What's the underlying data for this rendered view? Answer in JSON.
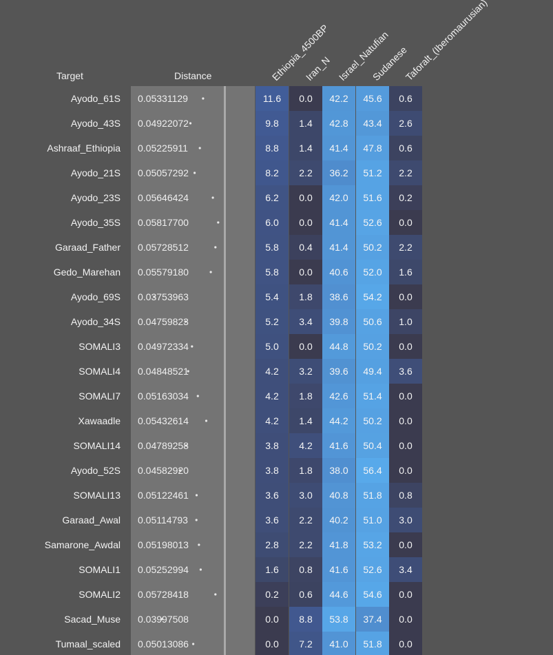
{
  "chart_data": {
    "type": "table",
    "headers": {
      "target": "Target",
      "distance": "Distance"
    },
    "columns": [
      "Ethiopia_4500BP",
      "Iran_N",
      "Israel_Natufian",
      "Sudanese",
      "Taforalt_(Iberomaurusian)"
    ],
    "distance_range": [
      0.03,
      0.07
    ],
    "rows": [
      {
        "target": "Ayodo_61S",
        "distance": "0.05331129",
        "values": [
          11.6,
          0.0,
          42.2,
          45.6,
          0.6
        ]
      },
      {
        "target": "Ayodo_43S",
        "distance": "0.04922072",
        "values": [
          9.8,
          1.4,
          42.8,
          43.4,
          2.6
        ]
      },
      {
        "target": "Ashraaf_Ethiopia",
        "distance": "0.05225911",
        "values": [
          8.8,
          1.4,
          41.4,
          47.8,
          0.6
        ]
      },
      {
        "target": "Ayodo_21S",
        "distance": "0.05057292",
        "values": [
          8.2,
          2.2,
          36.2,
          51.2,
          2.2
        ]
      },
      {
        "target": "Ayodo_23S",
        "distance": "0.05646424",
        "values": [
          6.2,
          0.0,
          42.0,
          51.6,
          0.2
        ]
      },
      {
        "target": "Ayodo_35S",
        "distance": "0.05817700",
        "values": [
          6.0,
          0.0,
          41.4,
          52.6,
          0.0
        ]
      },
      {
        "target": "Garaad_Father",
        "distance": "0.05728512",
        "values": [
          5.8,
          0.4,
          41.4,
          50.2,
          2.2
        ]
      },
      {
        "target": "Gedo_Marehan",
        "distance": "0.05579180",
        "values": [
          5.8,
          0.0,
          40.6,
          52.0,
          1.6
        ]
      },
      {
        "target": "Ayodo_69S",
        "distance": "0.03753963",
        "values": [
          5.4,
          1.8,
          38.6,
          54.2,
          0.0
        ]
      },
      {
        "target": "Ayodo_34S",
        "distance": "0.04759823",
        "values": [
          5.2,
          3.4,
          39.8,
          50.6,
          1.0
        ]
      },
      {
        "target": "SOMALI3",
        "distance": "0.04972334",
        "values": [
          5.0,
          0.0,
          44.8,
          50.2,
          0.0
        ]
      },
      {
        "target": "SOMALI4",
        "distance": "0.04848521",
        "values": [
          4.2,
          3.2,
          39.6,
          49.4,
          3.6
        ]
      },
      {
        "target": "SOMALI7",
        "distance": "0.05163034",
        "values": [
          4.2,
          1.8,
          42.6,
          51.4,
          0.0
        ]
      },
      {
        "target": "Xawaadle",
        "distance": "0.05432614",
        "values": [
          4.2,
          1.4,
          44.2,
          50.2,
          0.0
        ]
      },
      {
        "target": "SOMALI14",
        "distance": "0.04789258",
        "values": [
          3.8,
          4.2,
          41.6,
          50.4,
          0.0
        ]
      },
      {
        "target": "Ayodo_52S",
        "distance": "0.04582920",
        "values": [
          3.8,
          1.8,
          38.0,
          56.4,
          0.0
        ]
      },
      {
        "target": "SOMALI13",
        "distance": "0.05122461",
        "values": [
          3.6,
          3.0,
          40.8,
          51.8,
          0.8
        ]
      },
      {
        "target": "Garaad_Awal",
        "distance": "0.05114793",
        "values": [
          3.6,
          2.2,
          40.2,
          51.0,
          3.0
        ]
      },
      {
        "target": "Samarone_Awdal",
        "distance": "0.05198013",
        "values": [
          2.8,
          2.2,
          41.8,
          53.2,
          0.0
        ]
      },
      {
        "target": "SOMALI1",
        "distance": "0.05252994",
        "values": [
          1.6,
          0.8,
          41.6,
          52.6,
          3.4
        ]
      },
      {
        "target": "SOMALI2",
        "distance": "0.05728418",
        "values": [
          0.2,
          0.6,
          44.6,
          54.6,
          0.0
        ]
      },
      {
        "target": "Sacad_Muse",
        "distance": "0.03997508",
        "values": [
          0.0,
          8.8,
          53.8,
          37.4,
          0.0
        ]
      },
      {
        "target": "Tumaal_scaled",
        "distance": "0.05013086",
        "values": [
          0.0,
          7.2,
          41.0,
          51.8,
          0.0
        ]
      }
    ],
    "colors": {
      "background": "#555555",
      "distance_panel": "#747474",
      "divider": "#a9a9a9",
      "cell_low": "#3b3b4f",
      "cell_high": "#58a9ea"
    }
  }
}
